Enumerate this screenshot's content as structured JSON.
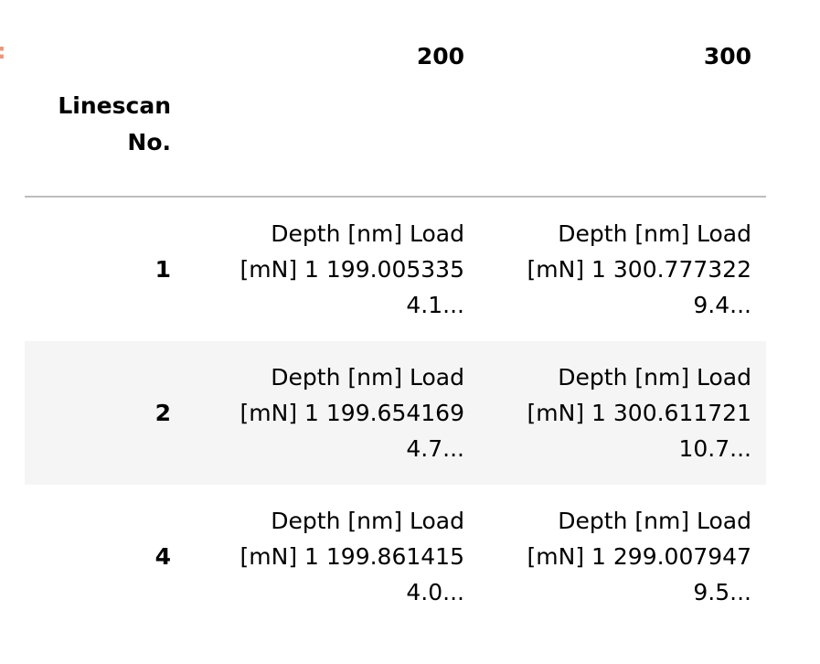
{
  "prompt": {
    "colon": ":"
  },
  "table": {
    "columns": [
      "200",
      "300"
    ],
    "index_name": "Linescan\nNo.",
    "rows": [
      {
        "index": "1",
        "cells": [
          "Depth [nm] Load\n[mN] 1 199.005335\n4.1...",
          "Depth [nm] Load\n[mN] 1 300.777322\n9.4..."
        ]
      },
      {
        "index": "2",
        "cells": [
          "Depth [nm] Load\n[mN] 1 199.654169\n4.7...",
          "Depth [nm] Load\n[mN] 1 300.611721\n10.7..."
        ]
      },
      {
        "index": "4",
        "cells": [
          "Depth [nm] Load\n[mN] 1 199.861415\n4.0...",
          "Depth [nm] Load\n[mN] 1 299.007947\n9.5..."
        ]
      }
    ]
  }
}
